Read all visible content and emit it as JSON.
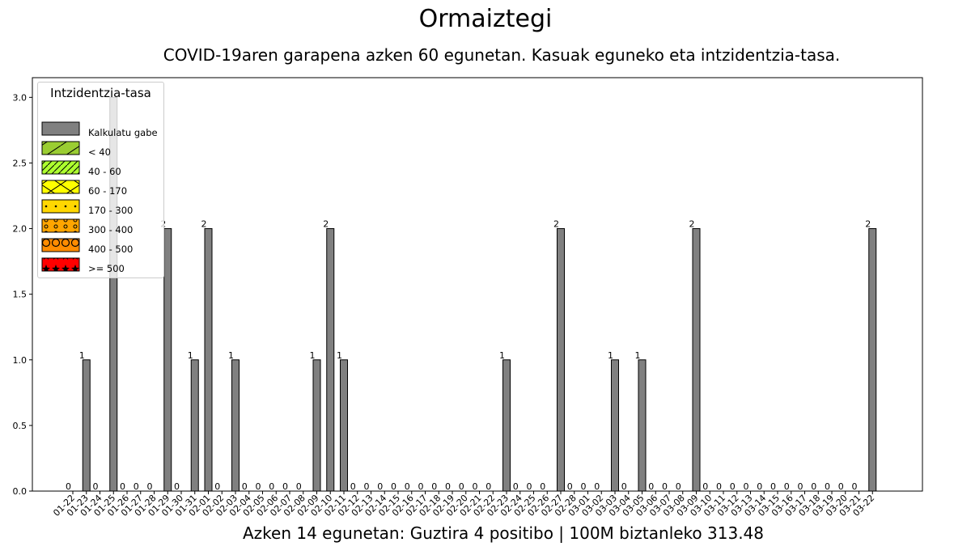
{
  "title": "Ormaiztegi",
  "subtitle": "COVID-19aren garapena azken 60 egunetan. Kasuak eguneko eta intzidentzia-tasa.",
  "footer": "Azken 14 egunetan: Guztira 4 positibo | 100M biztanleko 313.48",
  "legend": {
    "title": "Intzidentzia-tasa",
    "items": [
      {
        "label": "Kalkulatu gabe",
        "color": "#808080",
        "pattern": "none"
      },
      {
        "label": "< 40",
        "color": "#9acd32",
        "pattern": "diag"
      },
      {
        "label": "40 - 60",
        "color": "#adff2f",
        "pattern": "diag-dense"
      },
      {
        "label": "60 - 170",
        "color": "#ffff00",
        "pattern": "cross"
      },
      {
        "label": "170 - 300",
        "color": "#ffd700",
        "pattern": "dots"
      },
      {
        "label": "300 - 400",
        "color": "#ffa500",
        "pattern": "small-circles"
      },
      {
        "label": "400 - 500",
        "color": "#ff8c00",
        "pattern": "circles"
      },
      {
        "label": ">= 500",
        "color": "#ff0000",
        "pattern": "stars"
      }
    ]
  },
  "chart_data": {
    "type": "bar",
    "categories": [
      "01-22",
      "01-23",
      "01-24",
      "01-25",
      "01-26",
      "01-27",
      "01-28",
      "01-29",
      "01-30",
      "01-31",
      "02-01",
      "02-02",
      "02-03",
      "02-04",
      "02-05",
      "02-06",
      "02-07",
      "02-08",
      "02-09",
      "02-10",
      "02-11",
      "02-12",
      "02-13",
      "02-14",
      "02-15",
      "02-16",
      "02-17",
      "02-18",
      "02-19",
      "02-20",
      "02-21",
      "02-22",
      "02-23",
      "02-24",
      "02-25",
      "02-26",
      "02-27",
      "02-28",
      "03-01",
      "03-02",
      "03-03",
      "03-04",
      "03-05",
      "03-06",
      "03-07",
      "03-08",
      "03-09",
      "03-10",
      "03-11",
      "03-12",
      "03-13",
      "03-14",
      "03-15",
      "03-16",
      "03-17",
      "03-18",
      "03-19",
      "03-20",
      "03-21",
      "03-22"
    ],
    "values": [
      0,
      1,
      0,
      3,
      0,
      0,
      0,
      2,
      0,
      1,
      2,
      0,
      1,
      0,
      0,
      0,
      0,
      0,
      1,
      2,
      1,
      0,
      0,
      0,
      0,
      0,
      0,
      0,
      0,
      0,
      0,
      0,
      1,
      0,
      0,
      0,
      2,
      0,
      0,
      0,
      1,
      0,
      1,
      0,
      0,
      0,
      2,
      0,
      0,
      0,
      0,
      0,
      0,
      0,
      0,
      0,
      0,
      0,
      0,
      2
    ],
    "data_labels": [
      "0",
      "1",
      "0",
      "",
      "0",
      "0",
      "0",
      "2",
      "0",
      "1",
      "2",
      "0",
      "1",
      "0",
      "0",
      "0",
      "0",
      "0",
      "1",
      "2",
      "1",
      "0",
      "0",
      "0",
      "0",
      "0",
      "0",
      "0",
      "0",
      "0",
      "0",
      "0",
      "1",
      "0",
      "0",
      "0",
      "2",
      "0",
      "0",
      "0",
      "1",
      "0",
      "1",
      "0",
      "0",
      "0",
      "2",
      "0",
      "0",
      "0",
      "0",
      "0",
      "0",
      "0",
      "0",
      "0",
      "0",
      "0",
      "0",
      "2"
    ],
    "bar_color": "#808080",
    "yticks": [
      "0.0",
      "0.5",
      "1.0",
      "1.5",
      "2.0",
      "2.5",
      "3.0"
    ],
    "ylim": [
      0,
      3.15
    ],
    "grid": false,
    "legend_position": "upper-left"
  }
}
